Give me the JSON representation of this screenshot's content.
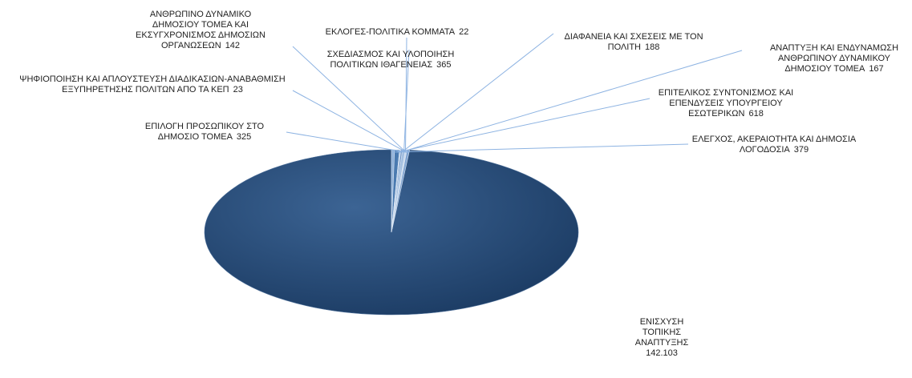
{
  "chart_data": {
    "type": "pie",
    "categories": [
      "ΕΝΙΣΧΥΣΗ ΤΟΠΙΚΗΣ ΑΝΑΠΤΥΞΗΣ",
      "ΕΛΕΓΧΟΣ, ΑΚΕΡΑΙΟΤΗΤΑ ΚΑΙ ΔΗΜΟΣΙΑ ΛΟΓΟΔΟΣΙΑ",
      "ΕΠΙΤΕΛΙΚΟΣ ΣΥΝΤΟΝΙΣΜΟΣ ΚΑΙ ΕΠΕΝΔΥΣΕΙΣ ΥΠΟΥΡΓΕΙΟΥ ΕΣΩΤΕΡΙΚΩΝ",
      "ΑΝΑΠΤΥΞΗ ΚΑΙ ΕΝΔΥΝΑΜΩΣΗ ΑΝΘΡΩΠΙΝΟΥ ΔΥΝΑΜΙΚΟΥ ΔΗΜΟΣΙΟΥ ΤΟΜΕΑ",
      "ΔΙΑΦΑΝΕΙΑ ΚΑΙ ΣΧΕΣΕΙΣ ΜΕ ΤΟΝ ΠΟΛΙΤΗ",
      "ΣΧΕΔΙΑΣΜΟΣ ΚΑΙ ΥΛΟΠΟΙΗΣΗ ΠΟΛΙΤΙΚΩΝ ΙΘΑΓΕΝΕΙΑΣ",
      "ΕΚΛΟΓΕΣ-ΠΟΛΙΤΙΚΑ ΚΟΜΜΑΤΑ",
      "ΑΝΘΡΩΠΙΝΟ ΔΥΝΑΜΙΚΟ ΔΗΜΟΣΙΟΥ ΤΟΜΕΑ ΚΑΙ ΕΚΣΥΓΧΡΟΝΙΣΜΟΣ ΔΗΜΟΣΙΩΝ ΟΡΓΑΝΩΣΕΩΝ",
      "ΨΗΦΙΟΠΟΙΗΣΗ ΚΑΙ ΑΠΛΟΥΣΤΕΥΣΗ ΔΙΑΔΙΚΑΣΙΩΝ-ΑΝΑΒΑΘΜΙΣΗ ΕΞΥΠΗΡΕΤΗΣΗΣ ΠΟΛΙΤΩΝ ΑΠΟ ΤΑ ΚΕΠ",
      "ΕΠΙΛΟΓΗ ΠΡΟΣΩΠΙΚΟΥ ΣΤΟ ΔΗΜΟΣΙΟ ΤΟΜΕΑ"
    ],
    "values": [
      142103,
      379,
      618,
      167,
      188,
      365,
      22,
      142,
      23,
      325
    ],
    "value_labels": [
      "142.103",
      "379",
      "618",
      "167",
      "188",
      "365",
      "22",
      "142",
      "23",
      "325"
    ],
    "color": "#1f4470"
  }
}
